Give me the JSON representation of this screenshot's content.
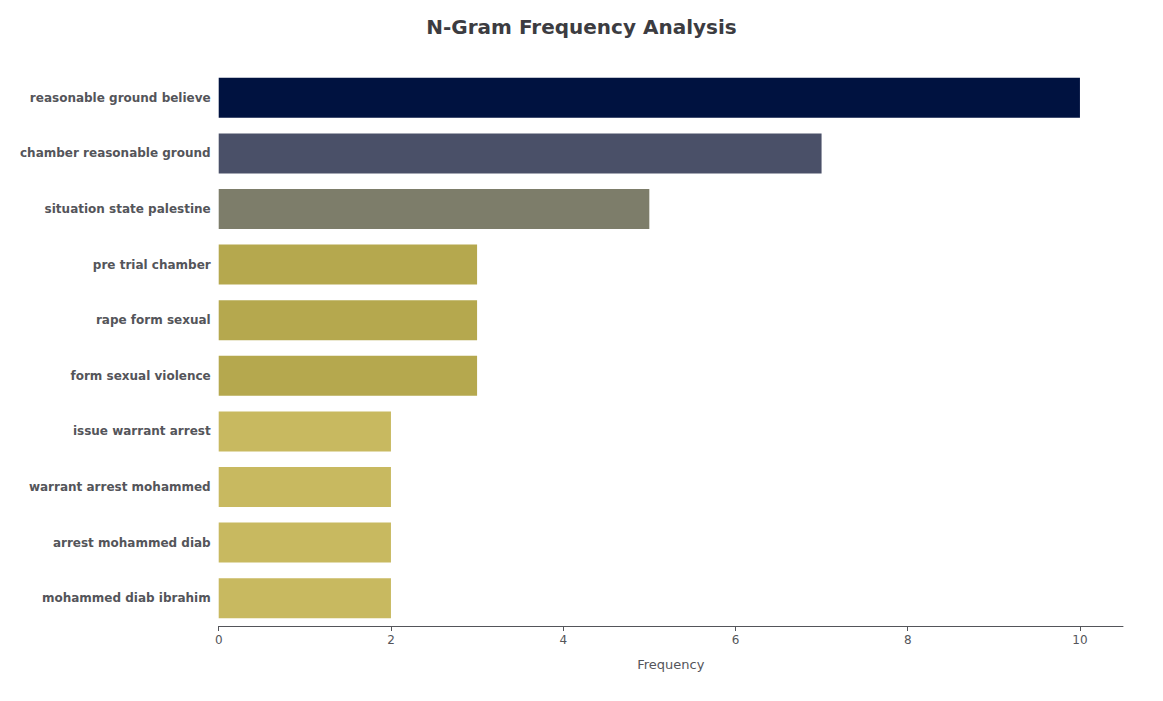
{
  "chart_data": {
    "type": "bar",
    "orientation": "horizontal",
    "title": "N-Gram Frequency Analysis",
    "xlabel": "Frequency",
    "categories": [
      "mohammed diab ibrahim",
      "arrest mohammed diab",
      "warrant arrest mohammed",
      "issue warrant arrest",
      "form sexual violence",
      "rape form sexual",
      "pre trial chamber",
      "situation state palestine",
      "chamber reasonable ground",
      "reasonable ground believe"
    ],
    "values": [
      2,
      2,
      2,
      2,
      3,
      3,
      3,
      5,
      7,
      10
    ],
    "colors": [
      "#c8b960",
      "#c8b960",
      "#c8b960",
      "#c8b960",
      "#b5a84e",
      "#b5a84e",
      "#b5a84e",
      "#7d7d6a",
      "#4a5068",
      "#001240"
    ],
    "xlim": [
      0,
      10.5
    ],
    "xticks": [
      0,
      2,
      4,
      6,
      8,
      10
    ],
    "grid": false
  }
}
